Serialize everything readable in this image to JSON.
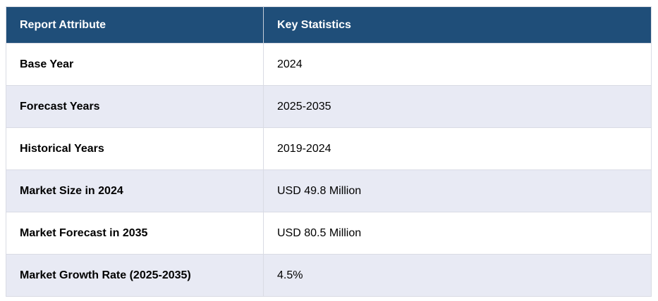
{
  "chart_data": {
    "type": "table",
    "title": "Report Attribute / Key Statistics summary table",
    "columns": [
      "Report Attribute",
      "Key Statistics"
    ],
    "rows": [
      [
        "Base Year",
        "2024"
      ],
      [
        "Forecast Years",
        "2025-2035"
      ],
      [
        "Historical Years",
        "2019-2024"
      ],
      [
        "Market Size in 2024",
        "USD 49.8 Million"
      ],
      [
        "Market Forecast in 2035",
        "USD 80.5 Million"
      ],
      [
        "Market Growth Rate (2025-2035)",
        "4.5%"
      ]
    ],
    "layout": {
      "header_position": "top",
      "row_striping": "alternating white and lavender, starting white",
      "attribute_column_bold": true
    }
  },
  "colors": {
    "header_bg": "#1f4e79",
    "header_text": "#ffffff",
    "row_bg": "#ffffff",
    "row_alt_bg": "#e8eaf4",
    "cell_border": "#d9dbe4",
    "body_text": "#000000"
  }
}
